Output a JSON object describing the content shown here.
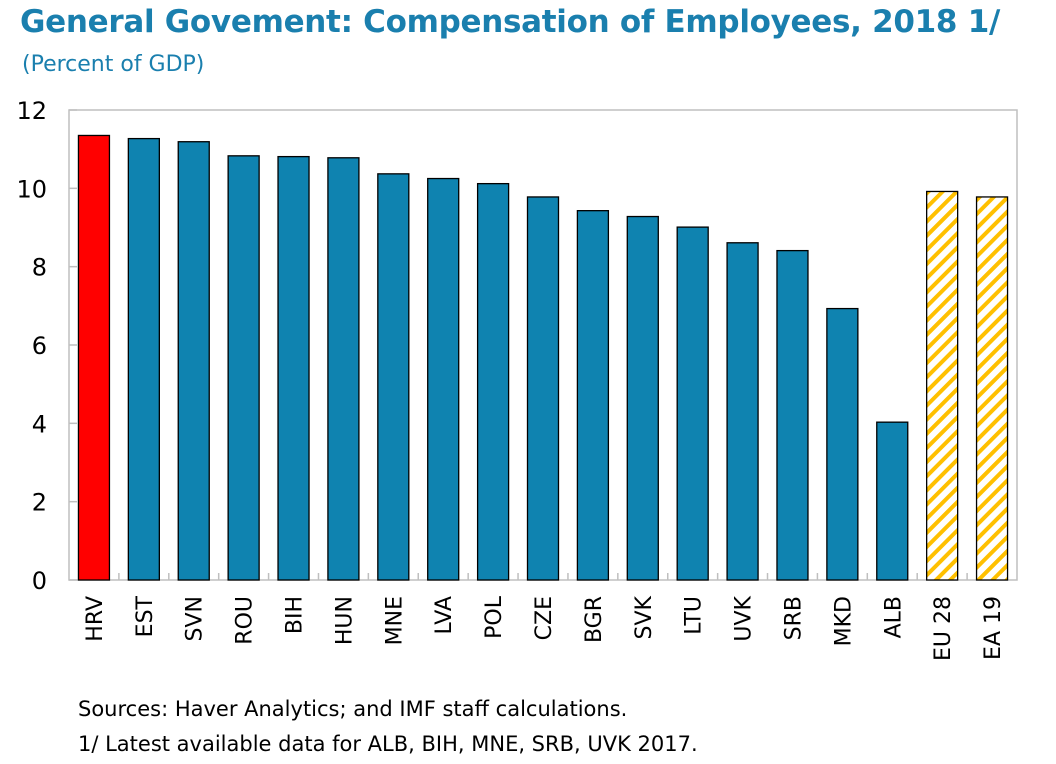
{
  "chart_data": {
    "type": "bar",
    "title": "General Govement: Compensation of Employees, 2018 1/",
    "subtitle": "(Percent of GDP)",
    "xlabel": "",
    "ylabel": "",
    "ylim": [
      0,
      12
    ],
    "yticks": [
      "0",
      "2",
      "4",
      "6",
      "8",
      "10",
      "12"
    ],
    "categories": [
      "HRV",
      "EST",
      "SVN",
      "ROU",
      "BIH",
      "HUN",
      "MNE",
      "LVA",
      "POL",
      "CZE",
      "BGR",
      "SVK",
      "LTU",
      "UVK",
      "SRB",
      "MKD",
      "ALB",
      "EU 28",
      "EA 19"
    ],
    "values": [
      11.35,
      11.27,
      11.19,
      10.83,
      10.81,
      10.78,
      10.37,
      10.25,
      10.12,
      9.78,
      9.43,
      9.28,
      9.01,
      8.61,
      8.41,
      6.93,
      4.03,
      9.92,
      9.78
    ],
    "styles": [
      "highlight",
      "normal",
      "normal",
      "normal",
      "normal",
      "normal",
      "normal",
      "normal",
      "normal",
      "normal",
      "normal",
      "normal",
      "normal",
      "normal",
      "normal",
      "normal",
      "normal",
      "hatched",
      "hatched"
    ],
    "colors": {
      "highlight": "#ff0000",
      "normal": "#0f83b0",
      "hatched": "#ffc000",
      "title": "#1a7fae"
    },
    "legend": "none",
    "grid": false
  },
  "notes": {
    "sources": "Sources: Haver Analytics; and IMF staff calculations.",
    "footnote": "1/ Latest available data for ALB, BIH, MNE, SRB, UVK 2017."
  }
}
